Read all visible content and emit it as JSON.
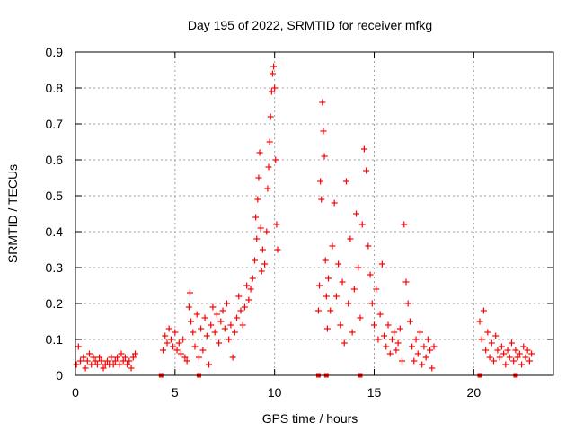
{
  "chart_data": {
    "type": "scatter",
    "title": "Day 195 of 2022, SRMTID for receiver mfkg",
    "xlabel": "GPS time / hours",
    "ylabel": "SRMTID / TECUs",
    "xlim": [
      0,
      24
    ],
    "ylim": [
      0,
      0.9
    ],
    "xticks": [
      0,
      5,
      10,
      15,
      20
    ],
    "xtick_labels": [
      "0",
      "5",
      "10",
      "15",
      "20"
    ],
    "yticks": [
      0,
      0.1,
      0.2,
      0.3,
      0.4,
      0.5,
      0.6,
      0.7,
      0.8,
      0.9
    ],
    "ytick_labels": [
      "0",
      "0.1",
      "0.2",
      "0.3",
      "0.4",
      "0.5",
      "0.6",
      "0.7",
      "0.8",
      "0.9"
    ],
    "grid": true,
    "marker": "+",
    "marker_color": "#ff0000",
    "series": [
      {
        "name": "SRMTID",
        "points": [
          [
            0.05,
            0.03
          ],
          [
            0.15,
            0.08
          ],
          [
            0.25,
            0.04
          ],
          [
            0.4,
            0.05
          ],
          [
            0.5,
            0.02
          ],
          [
            0.6,
            0.04
          ],
          [
            0.7,
            0.06
          ],
          [
            0.8,
            0.03
          ],
          [
            0.9,
            0.05
          ],
          [
            1.0,
            0.04
          ],
          [
            1.1,
            0.03
          ],
          [
            1.2,
            0.05
          ],
          [
            1.3,
            0.04
          ],
          [
            1.4,
            0.02
          ],
          [
            1.5,
            0.03
          ],
          [
            1.6,
            0.04
          ],
          [
            1.7,
            0.03
          ],
          [
            1.8,
            0.05
          ],
          [
            1.9,
            0.03
          ],
          [
            2.0,
            0.04
          ],
          [
            2.1,
            0.05
          ],
          [
            2.2,
            0.03
          ],
          [
            2.3,
            0.06
          ],
          [
            2.4,
            0.04
          ],
          [
            2.5,
            0.05
          ],
          [
            2.6,
            0.03
          ],
          [
            2.7,
            0.04
          ],
          [
            2.8,
            0.02
          ],
          [
            2.9,
            0.05
          ],
          [
            3.0,
            0.06
          ],
          [
            4.4,
            0.07
          ],
          [
            4.5,
            0.11
          ],
          [
            4.6,
            0.09
          ],
          [
            4.7,
            0.13
          ],
          [
            4.8,
            0.1
          ],
          [
            4.9,
            0.08
          ],
          [
            5.0,
            0.12
          ],
          [
            5.1,
            0.07
          ],
          [
            5.2,
            0.09
          ],
          [
            5.3,
            0.06
          ],
          [
            5.4,
            0.1
          ],
          [
            5.5,
            0.05
          ],
          [
            5.6,
            0.04
          ],
          [
            5.7,
            0.19
          ],
          [
            5.75,
            0.23
          ],
          [
            5.8,
            0.15
          ],
          [
            5.9,
            0.12
          ],
          [
            6.0,
            0.08
          ],
          [
            6.1,
            0.17
          ],
          [
            6.2,
            0.05
          ],
          [
            6.3,
            0.13
          ],
          [
            6.4,
            0.07
          ],
          [
            6.5,
            0.16
          ],
          [
            6.6,
            0.11
          ],
          [
            6.7,
            0.03
          ],
          [
            6.8,
            0.14
          ],
          [
            6.9,
            0.19
          ],
          [
            7.0,
            0.12
          ],
          [
            7.1,
            0.17
          ],
          [
            7.2,
            0.09
          ],
          [
            7.3,
            0.15
          ],
          [
            7.4,
            0.18
          ],
          [
            7.5,
            0.13
          ],
          [
            7.6,
            0.2
          ],
          [
            7.7,
            0.1
          ],
          [
            7.8,
            0.14
          ],
          [
            7.9,
            0.05
          ],
          [
            8.0,
            0.12
          ],
          [
            8.1,
            0.16
          ],
          [
            8.2,
            0.22
          ],
          [
            8.3,
            0.18
          ],
          [
            8.4,
            0.14
          ],
          [
            8.5,
            0.19
          ],
          [
            8.6,
            0.25
          ],
          [
            8.7,
            0.21
          ],
          [
            8.8,
            0.24
          ],
          [
            8.9,
            0.27
          ],
          [
            9.0,
            0.32
          ],
          [
            9.05,
            0.44
          ],
          [
            9.1,
            0.38
          ],
          [
            9.15,
            0.49
          ],
          [
            9.2,
            0.55
          ],
          [
            9.25,
            0.62
          ],
          [
            9.3,
            0.41
          ],
          [
            9.35,
            0.29
          ],
          [
            9.4,
            0.35
          ],
          [
            9.5,
            0.31
          ],
          [
            9.6,
            0.4
          ],
          [
            9.65,
            0.52
          ],
          [
            9.7,
            0.58
          ],
          [
            9.75,
            0.65
          ],
          [
            9.8,
            0.72
          ],
          [
            9.85,
            0.79
          ],
          [
            9.9,
            0.84
          ],
          [
            9.95,
            0.86
          ],
          [
            10.0,
            0.8
          ],
          [
            10.05,
            0.6
          ],
          [
            10.1,
            0.42
          ],
          [
            10.15,
            0.35
          ],
          [
            12.2,
            0.18
          ],
          [
            12.25,
            0.25
          ],
          [
            12.3,
            0.54
          ],
          [
            12.35,
            0.49
          ],
          [
            12.4,
            0.76
          ],
          [
            12.45,
            0.68
          ],
          [
            12.5,
            0.61
          ],
          [
            12.55,
            0.32
          ],
          [
            12.6,
            0.22
          ],
          [
            12.65,
            0.13
          ],
          [
            12.7,
            0.27
          ],
          [
            12.8,
            0.18
          ],
          [
            12.9,
            0.36
          ],
          [
            13.0,
            0.48
          ],
          [
            13.1,
            0.22
          ],
          [
            13.2,
            0.31
          ],
          [
            13.3,
            0.14
          ],
          [
            13.4,
            0.26
          ],
          [
            13.5,
            0.09
          ],
          [
            13.6,
            0.54
          ],
          [
            13.7,
            0.2
          ],
          [
            13.8,
            0.38
          ],
          [
            13.9,
            0.12
          ],
          [
            14.0,
            0.24
          ],
          [
            14.1,
            0.45
          ],
          [
            14.2,
            0.3
          ],
          [
            14.3,
            0.16
          ],
          [
            14.4,
            0.42
          ],
          [
            14.5,
            0.63
          ],
          [
            14.6,
            0.57
          ],
          [
            14.7,
            0.36
          ],
          [
            14.8,
            0.28
          ],
          [
            14.9,
            0.2
          ],
          [
            15.0,
            0.14
          ],
          [
            15.1,
            0.24
          ],
          [
            15.2,
            0.1
          ],
          [
            15.3,
            0.17
          ],
          [
            15.4,
            0.31
          ],
          [
            15.5,
            0.11
          ],
          [
            15.6,
            0.08
          ],
          [
            15.7,
            0.14
          ],
          [
            15.8,
            0.06
          ],
          [
            15.9,
            0.1
          ],
          [
            16.0,
            0.12
          ],
          [
            16.1,
            0.07
          ],
          [
            16.2,
            0.09
          ],
          [
            16.3,
            0.13
          ],
          [
            16.4,
            0.04
          ],
          [
            16.5,
            0.42
          ],
          [
            16.6,
            0.26
          ],
          [
            16.7,
            0.2
          ],
          [
            16.8,
            0.15
          ],
          [
            16.9,
            0.08
          ],
          [
            17.0,
            0.04
          ],
          [
            17.1,
            0.1
          ],
          [
            17.2,
            0.06
          ],
          [
            17.3,
            0.12
          ],
          [
            17.4,
            0.03
          ],
          [
            17.5,
            0.08
          ],
          [
            17.6,
            0.05
          ],
          [
            17.7,
            0.1
          ],
          [
            17.8,
            0.07
          ],
          [
            17.9,
            0.02
          ],
          [
            18.0,
            0.08
          ],
          [
            20.3,
            0.15
          ],
          [
            20.4,
            0.1
          ],
          [
            20.5,
            0.18
          ],
          [
            20.6,
            0.07
          ],
          [
            20.7,
            0.12
          ],
          [
            20.8,
            0.05
          ],
          [
            20.9,
            0.09
          ],
          [
            21.0,
            0.04
          ],
          [
            21.1,
            0.11
          ],
          [
            21.2,
            0.07
          ],
          [
            21.3,
            0.05
          ],
          [
            21.4,
            0.08
          ],
          [
            21.5,
            0.06
          ],
          [
            21.6,
            0.03
          ],
          [
            21.7,
            0.07
          ],
          [
            21.8,
            0.05
          ],
          [
            21.9,
            0.09
          ],
          [
            22.0,
            0.04
          ],
          [
            22.1,
            0.07
          ],
          [
            22.2,
            0.05
          ],
          [
            22.3,
            0.06
          ],
          [
            22.4,
            0.03
          ],
          [
            22.5,
            0.08
          ],
          [
            22.6,
            0.05
          ],
          [
            22.7,
            0.07
          ],
          [
            22.8,
            0.04
          ],
          [
            22.9,
            0.06
          ]
        ]
      }
    ],
    "zero_markers": [
      4.3,
      6.2,
      12.2,
      12.6,
      14.3,
      20.3,
      22.1
    ]
  }
}
